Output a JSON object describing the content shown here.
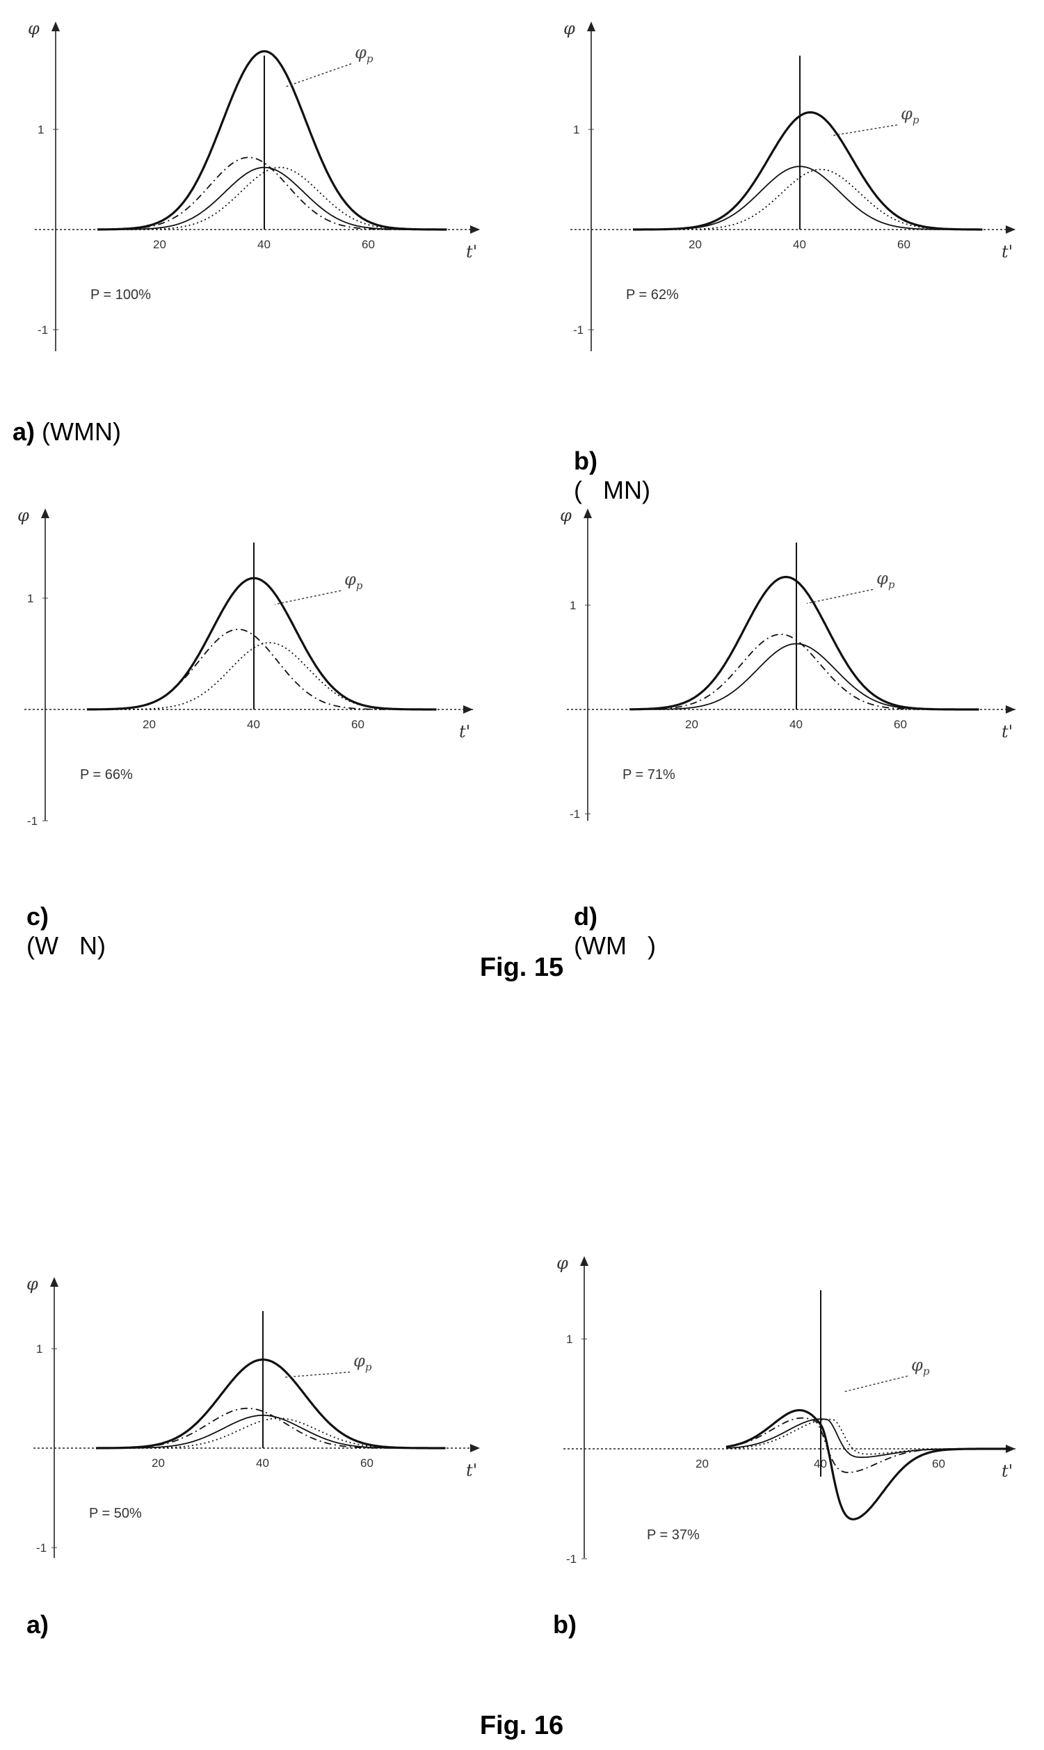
{
  "figures": [
    {
      "label": "Fig. 15"
    },
    {
      "label": "Fig. 16"
    }
  ],
  "chart_data": [
    {
      "type": "line",
      "panel": "fig15a",
      "caption_letter": "a)",
      "caption_rest": "(WMN)",
      "annotation": "P = 100%",
      "peak_label": "φp",
      "xlabel": "t'",
      "ylabel": "φ",
      "xticks": [
        20,
        40,
        60
      ],
      "yticks": [
        1,
        -1
      ],
      "xlim": [
        0,
        80
      ],
      "ylim": [
        -1.2,
        2.0
      ],
      "marker_x": 40,
      "series": [
        {
          "style": "solid-thick",
          "amp": 1.78,
          "center": 40,
          "sigma": 8.0,
          "skew": 0
        },
        {
          "style": "dashdot",
          "amp": 0.72,
          "center": 37,
          "sigma": 7.5,
          "skew": 0
        },
        {
          "style": "solid",
          "amp": 0.62,
          "center": 40,
          "sigma": 7.5,
          "skew": 0
        },
        {
          "style": "dotted",
          "amp": 0.62,
          "center": 43,
          "sigma": 7.5,
          "skew": 0
        }
      ]
    },
    {
      "type": "line",
      "panel": "fig15b",
      "caption_letter": "b)",
      "caption_rest": "(   MN)",
      "annotation": "P = 62%",
      "peak_label": "φp",
      "xlabel": "t'",
      "ylabel": "φ",
      "xticks": [
        20,
        40,
        60
      ],
      "yticks": [
        1,
        -1
      ],
      "xlim": [
        0,
        80
      ],
      "ylim": [
        -1.2,
        2.0
      ],
      "marker_x": 40,
      "series": [
        {
          "style": "solid-thick",
          "amp": 1.17,
          "center": 42,
          "sigma": 8.0,
          "skew": 0
        },
        {
          "style": "solid",
          "amp": 0.63,
          "center": 40,
          "sigma": 7.5,
          "skew": 0
        },
        {
          "style": "dotted",
          "amp": 0.6,
          "center": 44,
          "sigma": 7.5,
          "skew": 0
        }
      ]
    },
    {
      "type": "line",
      "panel": "fig15c",
      "caption_letter": "c)",
      "caption_rest": "(W   N)",
      "annotation": "P = 66%",
      "peak_label": "φp",
      "xlabel": "t'",
      "ylabel": "φ",
      "xticks": [
        20,
        40,
        60
      ],
      "yticks": [
        1,
        -1
      ],
      "xlim": [
        0,
        80
      ],
      "ylim": [
        -1.2,
        2.0
      ],
      "marker_x": 40,
      "series": [
        {
          "style": "solid-thick",
          "amp": 1.18,
          "center": 40,
          "sigma": 8.0,
          "skew": 0
        },
        {
          "style": "dashdot",
          "amp": 0.72,
          "center": 37,
          "sigma": 7.5,
          "skew": 0
        },
        {
          "style": "dotted",
          "amp": 0.6,
          "center": 43,
          "sigma": 7.5,
          "skew": 0
        }
      ]
    },
    {
      "type": "line",
      "panel": "fig15d",
      "caption_letter": "d)",
      "caption_rest": "(WM   )",
      "annotation": "P = 71%",
      "peak_label": "φp",
      "xlabel": "t'",
      "ylabel": "φ",
      "xticks": [
        20,
        40,
        60
      ],
      "yticks": [
        1,
        -1
      ],
      "xlim": [
        0,
        80
      ],
      "ylim": [
        -1.2,
        2.0
      ],
      "marker_x": 40,
      "series": [
        {
          "style": "solid-thick",
          "amp": 1.27,
          "center": 38,
          "sigma": 8.0,
          "skew": 0
        },
        {
          "style": "dashdot",
          "amp": 0.72,
          "center": 37,
          "sigma": 7.5,
          "skew": 0
        },
        {
          "style": "solid",
          "amp": 0.63,
          "center": 40,
          "sigma": 7.5,
          "skew": 0
        }
      ]
    },
    {
      "type": "line",
      "panel": "fig16a",
      "caption_letter": "a)",
      "caption_rest": "",
      "annotation": "P = 50%",
      "peak_label": "φp",
      "xlabel": "t'",
      "ylabel": "φ",
      "xticks": [
        20,
        40,
        60
      ],
      "yticks": [
        1,
        -1
      ],
      "xlim": [
        0,
        80
      ],
      "ylim": [
        -1.2,
        2.0
      ],
      "marker_x": 40,
      "series": [
        {
          "style": "solid-thick",
          "amp": 0.89,
          "center": 40,
          "sigma": 8.0,
          "skew": 0
        },
        {
          "style": "dashdot",
          "amp": 0.4,
          "center": 37,
          "sigma": 7.5,
          "skew": 0
        },
        {
          "style": "solid",
          "amp": 0.33,
          "center": 40,
          "sigma": 7.5,
          "skew": 0
        },
        {
          "style": "dotted",
          "amp": 0.3,
          "center": 43,
          "sigma": 7.5,
          "skew": 0
        }
      ]
    },
    {
      "type": "line",
      "panel": "fig16b",
      "caption_letter": "b)",
      "caption_rest": "",
      "annotation": "P = 37%",
      "peak_label": "φp",
      "xlabel": "t'",
      "ylabel": "φ",
      "xticks": [
        20,
        40,
        60
      ],
      "yticks": [
        1,
        -1
      ],
      "xlim": [
        0,
        80
      ],
      "ylim": [
        -1.2,
        2.0
      ],
      "marker_x": 40,
      "series": [
        {
          "style": "solid-thick",
          "amp": 0.65,
          "center": 40,
          "sigma": 6.0,
          "skew": 1,
          "neg_amp": -0.65,
          "neg_center": 45,
          "neg_sigma": 5.5
        },
        {
          "style": "dashdot",
          "amp": 0.4,
          "center": 39,
          "sigma": 6.0,
          "skew": 1,
          "neg_amp": -0.22,
          "neg_center": 44,
          "neg_sigma": 5.5
        },
        {
          "style": "solid",
          "amp": 0.32,
          "center": 41,
          "sigma": 6.0,
          "skew": 1,
          "neg_amp": -0.08,
          "neg_center": 46,
          "neg_sigma": 5.5
        },
        {
          "style": "dotted",
          "amp": 0.3,
          "center": 42,
          "sigma": 6.0,
          "skew": 1,
          "neg_amp": -0.05,
          "neg_center": 47,
          "neg_sigma": 5.5
        }
      ]
    }
  ]
}
